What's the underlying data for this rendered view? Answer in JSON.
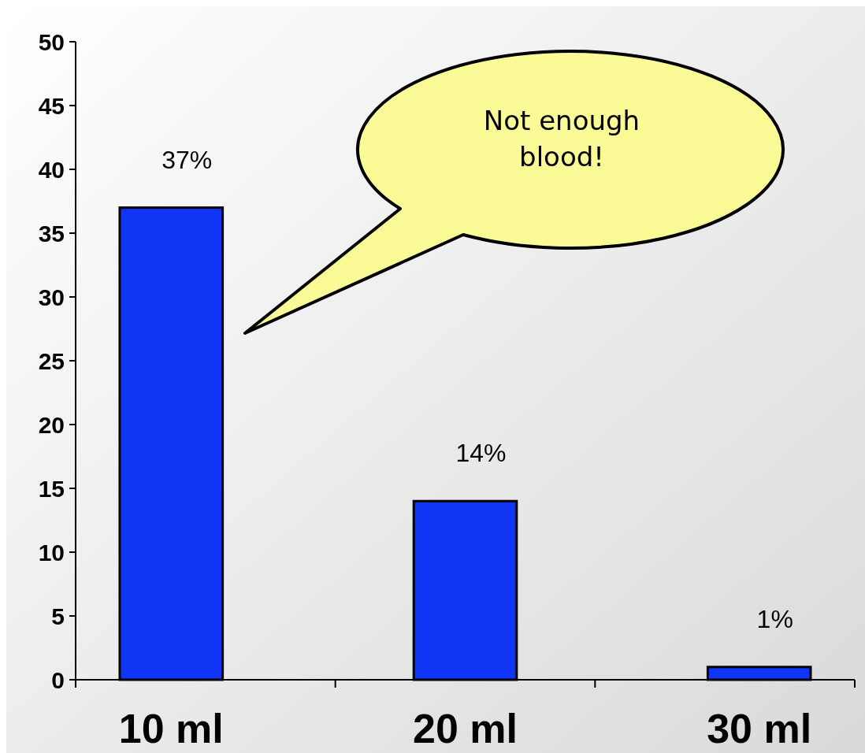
{
  "chart_data": {
    "type": "bar",
    "categories": [
      "10 ml",
      "20 ml",
      "30 ml"
    ],
    "values": [
      37,
      14,
      1
    ],
    "color": "#1035f5",
    "value_labels": [
      "37%",
      "14%",
      "1%"
    ],
    "ylim": [
      0,
      50
    ],
    "yticks": [
      0,
      5,
      10,
      15,
      20,
      25,
      30,
      35,
      40,
      45,
      50
    ],
    "annotations": [
      "Not enough blood!"
    ]
  }
}
